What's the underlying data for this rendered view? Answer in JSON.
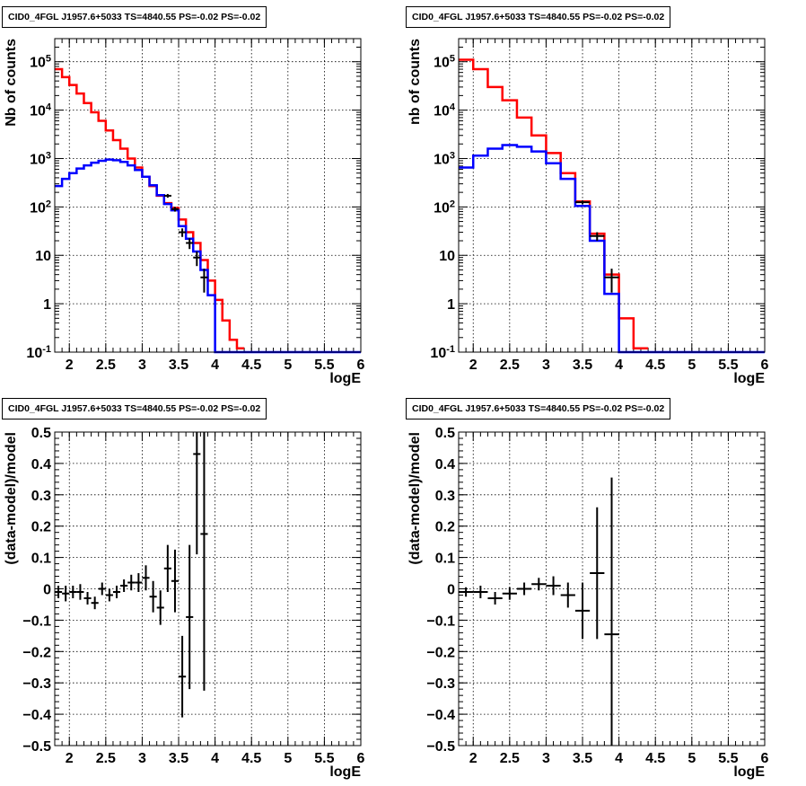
{
  "colors": {
    "model_total": "#ff0000",
    "model_source": "#0000ff",
    "data": "#000000",
    "grid": "#000000"
  },
  "chart_data": [
    {
      "type": "line",
      "title": "CID0_4FGL J1957.6+5033 TS=4840.55 PS=-0.02 PS=-0.02",
      "xlabel": "logE",
      "ylabel": "Nb of counts",
      "xlim": [
        1.8,
        6.0
      ],
      "ylim": [
        0.1,
        300000
      ],
      "yscale": "log",
      "grid": true,
      "xticks": [
        "2",
        "2.5",
        "3",
        "3.5",
        "4",
        "4.5",
        "5",
        "5.5",
        "6"
      ],
      "yticks": [
        "10^{-1}",
        "1",
        "10",
        "10^{2}",
        "10^{3}",
        "10^{4}",
        "10^{5}"
      ],
      "bin_edges": [
        1.8,
        1.9,
        2.0,
        2.1,
        2.2,
        2.3,
        2.4,
        2.5,
        2.6,
        2.7,
        2.8,
        2.9,
        3.0,
        3.1,
        3.2,
        3.3,
        3.4,
        3.5,
        3.6,
        3.7,
        3.8,
        3.9,
        4.0,
        4.1,
        4.2,
        4.3,
        4.4,
        4.5,
        4.6,
        4.7,
        4.8,
        4.9,
        5.0,
        5.1,
        5.2,
        5.3,
        5.4,
        5.5,
        5.6,
        5.7,
        5.8,
        5.9,
        6.0
      ],
      "series": [
        {
          "role": "model_total",
          "values": [
            70000,
            48000,
            33000,
            22000,
            14000,
            9000,
            6000,
            3800,
            2400,
            1600,
            1000,
            650,
            420,
            270,
            170,
            120,
            95,
            55,
            30,
            18,
            8,
            3,
            1.2,
            0.45,
            0.18,
            0.12,
            0,
            0,
            0,
            0,
            0,
            0,
            0,
            0,
            0,
            0,
            0,
            0,
            0,
            0,
            0,
            0
          ]
        },
        {
          "role": "model_source",
          "values": [
            270,
            380,
            500,
            620,
            720,
            820,
            900,
            950,
            920,
            850,
            720,
            580,
            420,
            280,
            175,
            115,
            85,
            40,
            22,
            12,
            5,
            1.5,
            0.1,
            0.1,
            0.1,
            0.1,
            0.1,
            0.1,
            0.1,
            0.1,
            0.1,
            0.1,
            0.1,
            0.1,
            0.1,
            0.1,
            0.1,
            0.1,
            0.1,
            0.1,
            0.1,
            0.1
          ]
        },
        {
          "role": "data",
          "points": [
            [
              3.35,
              170,
              15
            ],
            [
              3.45,
              90,
              10
            ],
            [
              3.55,
              30,
              6
            ],
            [
              3.65,
              18,
              4.5
            ],
            [
              3.75,
              9,
              3
            ],
            [
              3.85,
              3.5,
              1.8
            ]
          ]
        }
      ]
    },
    {
      "type": "line",
      "title": "CID0_4FGL J1957.6+5033 TS=4840.55 PS=-0.02 PS=-0.02",
      "xlabel": "logE",
      "ylabel": "nb of counts",
      "xlim": [
        1.8,
        6.0
      ],
      "ylim": [
        0.1,
        300000
      ],
      "yscale": "log",
      "grid": true,
      "xticks": [
        "2",
        "2.5",
        "3",
        "3.5",
        "4",
        "4.5",
        "5",
        "5.5",
        "6"
      ],
      "yticks": [
        "10^{-1}",
        "1",
        "10",
        "10^{2}",
        "10^{3}",
        "10^{4}",
        "10^{5}"
      ],
      "bin_edges": [
        1.8,
        2.0,
        2.2,
        2.4,
        2.6,
        2.8,
        3.0,
        3.2,
        3.4,
        3.6,
        3.8,
        4.0,
        4.2,
        4.4,
        4.6,
        4.8,
        5.0,
        5.2,
        5.4,
        5.6,
        5.8,
        6.0
      ],
      "series": [
        {
          "role": "model_total",
          "values": [
            110000,
            70000,
            30000,
            16000,
            7000,
            3000,
            1300,
            500,
            130,
            28,
            4,
            0.5,
            0.12,
            0,
            0,
            0,
            0,
            0,
            0,
            0,
            0
          ]
        },
        {
          "role": "model_source",
          "values": [
            650,
            1150,
            1600,
            1900,
            1750,
            1400,
            800,
            380,
            105,
            20,
            1.6,
            0.1,
            0.1,
            0.1,
            0.1,
            0.1,
            0.1,
            0.1,
            0.1,
            0.1,
            0.1
          ]
        },
        {
          "role": "data",
          "points": [
            [
              3.5,
              125,
              11
            ],
            [
              3.7,
              25,
              5
            ],
            [
              3.9,
              3.5,
              1.8
            ]
          ]
        }
      ]
    },
    {
      "type": "scatter",
      "title": "CID0_4FGL J1957.6+5033 TS=4840.55 PS=-0.02 PS=-0.02",
      "xlabel": "logE",
      "ylabel": "(data-model)/model",
      "xlim": [
        1.8,
        6.0
      ],
      "ylim": [
        -0.5,
        0.5
      ],
      "grid": true,
      "xticks": [
        "2",
        "2.5",
        "3",
        "3.5",
        "4",
        "4.5",
        "5",
        "5.5",
        "6"
      ],
      "yticks": [
        "−0.5",
        "−0.4",
        "−0.3",
        "−0.2",
        "−0.1",
        "0",
        "0.1",
        "0.2",
        "0.3",
        "0.4",
        "0.5"
      ],
      "bin_width": 0.1,
      "points": [
        [
          1.85,
          -0.01,
          0.02
        ],
        [
          1.95,
          -0.015,
          0.025
        ],
        [
          2.05,
          -0.01,
          0.02
        ],
        [
          2.15,
          -0.01,
          0.025
        ],
        [
          2.25,
          -0.03,
          0.02
        ],
        [
          2.35,
          -0.045,
          0.02
        ],
        [
          2.45,
          0.0,
          0.02
        ],
        [
          2.55,
          -0.02,
          0.02
        ],
        [
          2.65,
          -0.01,
          0.02
        ],
        [
          2.75,
          0.01,
          0.02
        ],
        [
          2.85,
          0.02,
          0.025
        ],
        [
          2.95,
          0.02,
          0.03
        ],
        [
          3.05,
          0.035,
          0.04
        ],
        [
          3.15,
          -0.025,
          0.05
        ],
        [
          3.25,
          -0.06,
          0.055
        ],
        [
          3.35,
          0.065,
          0.075
        ],
        [
          3.45,
          0.025,
          0.1
        ],
        [
          3.55,
          -0.28,
          0.13
        ],
        [
          3.65,
          -0.09,
          0.23
        ],
        [
          3.75,
          0.43,
          0.32
        ],
        [
          3.85,
          0.175,
          0.5
        ]
      ]
    },
    {
      "type": "scatter",
      "title": "CID0_4FGL J1957.6+5033 TS=4840.55 PS=-0.02 PS=-0.02",
      "xlabel": "logE",
      "ylabel": "(data-model)/model",
      "xlim": [
        1.8,
        6.0
      ],
      "ylim": [
        -0.5,
        0.5
      ],
      "grid": true,
      "xticks": [
        "2",
        "2.5",
        "3",
        "3.5",
        "4",
        "4.5",
        "5",
        "5.5",
        "6"
      ],
      "yticks": [
        "−0.5",
        "−0.4",
        "−0.3",
        "−0.2",
        "−0.1",
        "0",
        "0.1",
        "0.2",
        "0.3",
        "0.4",
        "0.5"
      ],
      "bin_width": 0.2,
      "points": [
        [
          1.9,
          -0.01,
          0.015
        ],
        [
          2.1,
          -0.01,
          0.02
        ],
        [
          2.3,
          -0.03,
          0.02
        ],
        [
          2.5,
          -0.015,
          0.02
        ],
        [
          2.7,
          0.0,
          0.02
        ],
        [
          2.9,
          0.015,
          0.02
        ],
        [
          3.1,
          0.01,
          0.03
        ],
        [
          3.3,
          -0.02,
          0.04
        ],
        [
          3.5,
          -0.07,
          0.09
        ],
        [
          3.7,
          0.05,
          0.21
        ],
        [
          3.9,
          -0.145,
          0.5
        ]
      ]
    }
  ]
}
